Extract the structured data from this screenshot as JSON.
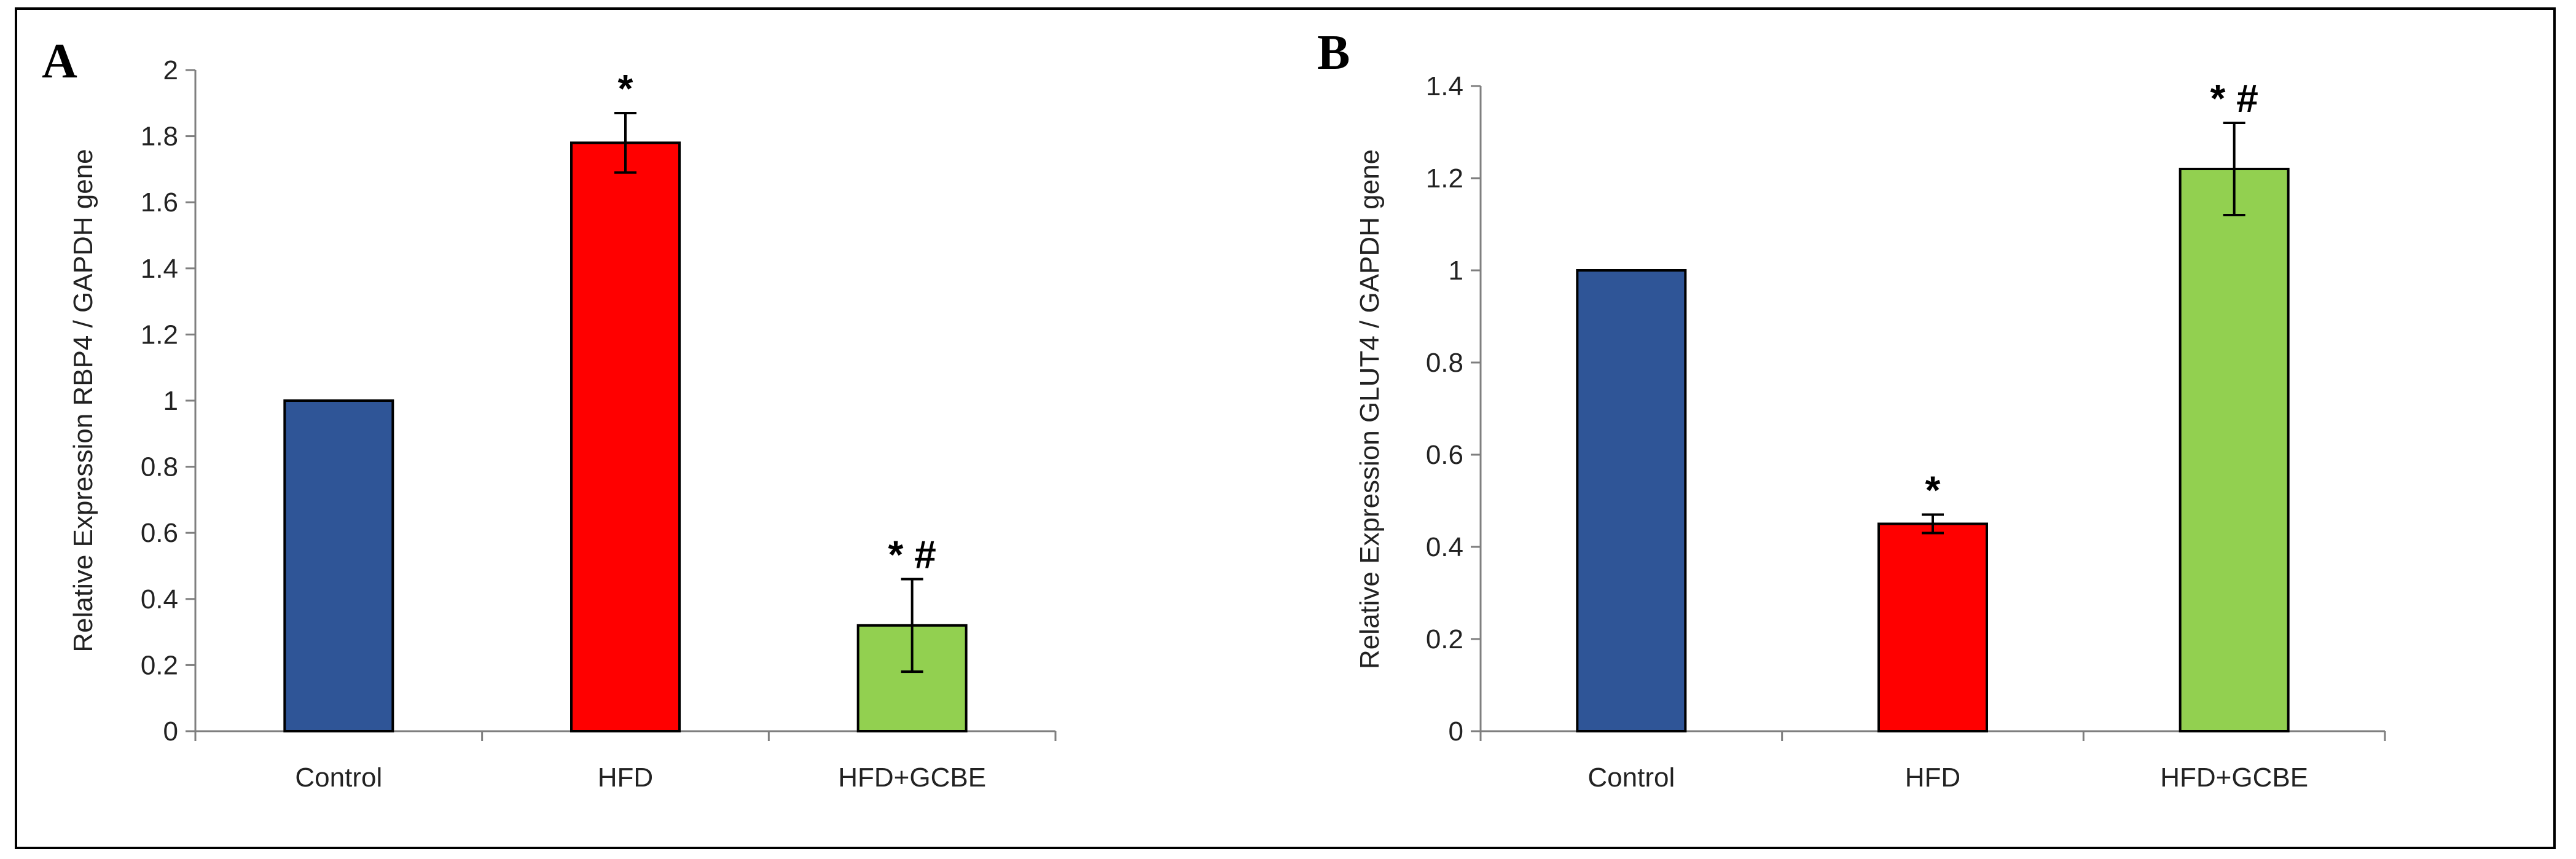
{
  "chart_data": [
    {
      "type": "bar",
      "panel_label": "A",
      "categories": [
        "Control",
        "HFD",
        "HFD+GCBE"
      ],
      "values": [
        1.0,
        1.78,
        0.32
      ],
      "errors": [
        0,
        0.09,
        0.14
      ],
      "annotations": [
        "",
        "*",
        "* #"
      ],
      "colors": [
        "#2F5597",
        "#FF0000",
        "#92D050"
      ],
      "ylabel": "Relative Expression RBP4 / GAPDH gene",
      "xlabel": "",
      "ylim": [
        0,
        2
      ],
      "ytick_step": 0.2,
      "yticks": [
        "0",
        "0.2",
        "0.4",
        "0.6",
        "0.8",
        "1",
        "1.2",
        "1.4",
        "1.6",
        "1.8",
        "2"
      ]
    },
    {
      "type": "bar",
      "panel_label": "B",
      "categories": [
        "Control",
        "HFD",
        "HFD+GCBE"
      ],
      "values": [
        1.0,
        0.45,
        1.22
      ],
      "errors": [
        0,
        0.02,
        0.1
      ],
      "annotations": [
        "",
        "*",
        "* #"
      ],
      "colors": [
        "#2F5597",
        "#FF0000",
        "#92D050"
      ],
      "ylabel": "Relative Expression GLUT4 / GAPDH gene",
      "xlabel": "",
      "ylim": [
        0,
        1.4
      ],
      "ytick_step": 0.2,
      "yticks": [
        "0",
        "0.2",
        "0.4",
        "0.6",
        "0.8",
        "1",
        "1.2",
        "1.4"
      ]
    }
  ]
}
